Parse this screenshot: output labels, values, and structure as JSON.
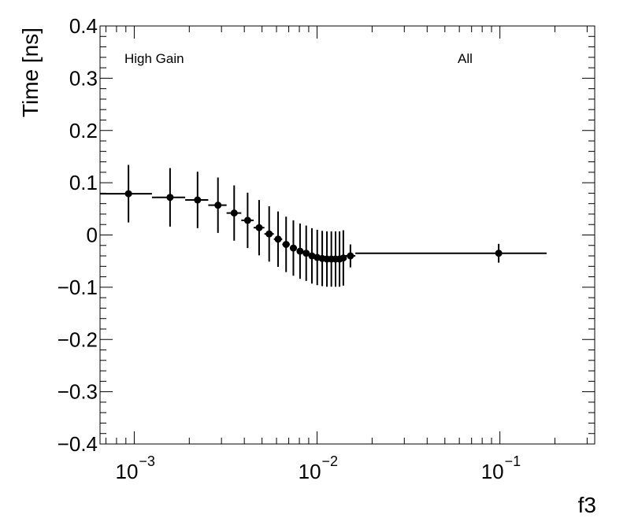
{
  "chart_data": {
    "type": "scatter",
    "xlabel": "f3",
    "ylabel": "Time [ns]",
    "x_scale": "log",
    "xlim": [
      0.00065,
      0.33
    ],
    "ylim": [
      -0.4,
      0.4
    ],
    "grid": false,
    "annotations": {
      "left": "High Gain",
      "right": "All"
    },
    "x_tick_labels": [
      {
        "value": 0.001,
        "base": "10",
        "exp": "−3"
      },
      {
        "value": 0.01,
        "base": "10",
        "exp": "−2"
      },
      {
        "value": 0.1,
        "base": "10",
        "exp": "−1"
      }
    ],
    "y_tick_labels": [
      {
        "value": 0.4,
        "label": "0.4"
      },
      {
        "value": 0.3,
        "label": "0.3"
      },
      {
        "value": 0.2,
        "label": "0.2"
      },
      {
        "value": 0.1,
        "label": "0.1"
      },
      {
        "value": 0,
        "label": "0"
      },
      {
        "value": -0.1,
        "label": "−0.1"
      },
      {
        "value": -0.2,
        "label": "−0.2"
      },
      {
        "value": -0.3,
        "label": "−0.3"
      },
      {
        "value": -0.4,
        "label": "−0.4"
      }
    ],
    "series": [
      {
        "color": "#000000",
        "points": [
          {
            "x": 0.00093,
            "y": 0.079,
            "xlo": 0.00065,
            "xhi": 0.00125,
            "err": 0.055
          },
          {
            "x": 0.00157,
            "y": 0.072,
            "xlo": 0.00125,
            "xhi": 0.0019,
            "err": 0.056
          },
          {
            "x": 0.00222,
            "y": 0.067,
            "xlo": 0.0019,
            "xhi": 0.00254,
            "err": 0.054
          },
          {
            "x": 0.00287,
            "y": 0.057,
            "xlo": 0.00254,
            "xhi": 0.0032,
            "err": 0.053
          },
          {
            "x": 0.00352,
            "y": 0.042,
            "xlo": 0.0032,
            "xhi": 0.00385,
            "err": 0.053
          },
          {
            "x": 0.00417,
            "y": 0.028,
            "xlo": 0.00385,
            "xhi": 0.0045,
            "err": 0.053
          },
          {
            "x": 0.00482,
            "y": 0.014,
            "xlo": 0.0045,
            "xhi": 0.00515,
            "err": 0.053
          },
          {
            "x": 0.00547,
            "y": 0.002,
            "xlo": 0.00515,
            "xhi": 0.0058,
            "err": 0.053
          },
          {
            "x": 0.00612,
            "y": -0.008,
            "xlo": 0.0058,
            "xhi": 0.00645,
            "err": 0.053
          },
          {
            "x": 0.00677,
            "y": -0.018,
            "xlo": 0.00645,
            "xhi": 0.0071,
            "err": 0.053
          },
          {
            "x": 0.00742,
            "y": -0.025,
            "xlo": 0.0071,
            "xhi": 0.00775,
            "err": 0.053
          },
          {
            "x": 0.00807,
            "y": -0.031,
            "xlo": 0.00775,
            "xhi": 0.0084,
            "err": 0.053
          },
          {
            "x": 0.00872,
            "y": -0.035,
            "xlo": 0.0084,
            "xhi": 0.00905,
            "err": 0.053
          },
          {
            "x": 0.00937,
            "y": -0.04,
            "xlo": 0.00905,
            "xhi": 0.0097,
            "err": 0.053
          },
          {
            "x": 0.01002,
            "y": -0.043,
            "xlo": 0.0097,
            "xhi": 0.01035,
            "err": 0.053
          },
          {
            "x": 0.01067,
            "y": -0.045,
            "xlo": 0.01035,
            "xhi": 0.011,
            "err": 0.053
          },
          {
            "x": 0.01132,
            "y": -0.046,
            "xlo": 0.011,
            "xhi": 0.01165,
            "err": 0.053
          },
          {
            "x": 0.01197,
            "y": -0.046,
            "xlo": 0.01165,
            "xhi": 0.0123,
            "err": 0.053
          },
          {
            "x": 0.01262,
            "y": -0.046,
            "xlo": 0.0123,
            "xhi": 0.01295,
            "err": 0.053
          },
          {
            "x": 0.01327,
            "y": -0.046,
            "xlo": 0.01295,
            "xhi": 0.0136,
            "err": 0.053
          },
          {
            "x": 0.01392,
            "y": -0.044,
            "xlo": 0.0136,
            "xhi": 0.01425,
            "err": 0.053
          },
          {
            "x": 0.01522,
            "y": -0.04,
            "xlo": 0.01425,
            "xhi": 0.0162,
            "err": 0.022
          },
          {
            "x": 0.0985,
            "y": -0.035,
            "xlo": 0.0162,
            "xhi": 0.18,
            "err": 0.018
          }
        ]
      }
    ]
  }
}
